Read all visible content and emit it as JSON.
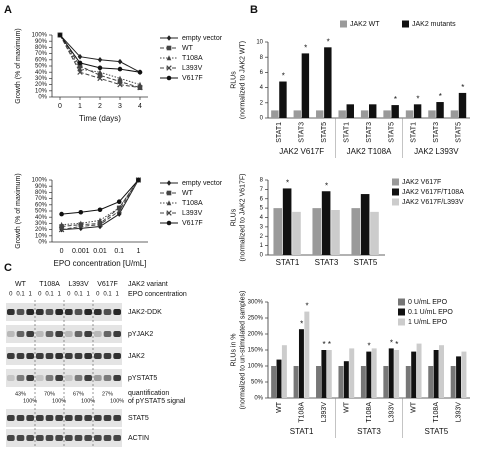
{
  "panels": [
    "A",
    "B",
    "C"
  ],
  "chart_data": [
    {
      "type": "line",
      "ylabel": [
        "Growth (% of maximum)"
      ],
      "xlabel": "Time (days)",
      "x": [
        0,
        1,
        2,
        3,
        4
      ],
      "xlim": [
        -0.4,
        4.4
      ],
      "xticks": [
        0,
        1,
        2,
        3,
        4
      ],
      "ylim": [
        0,
        100
      ],
      "yticks": [
        {
          "value": 0,
          "label": "0%"
        },
        {
          "value": 10,
          "label": "10%"
        },
        {
          "value": 20,
          "label": "20%"
        },
        {
          "value": 30,
          "label": "30%"
        },
        {
          "value": 40,
          "label": "40%"
        },
        {
          "value": 50,
          "label": "50%"
        },
        {
          "value": 60,
          "label": "60%"
        },
        {
          "value": 70,
          "label": "70%"
        },
        {
          "value": 80,
          "label": "80%"
        },
        {
          "value": 90,
          "label": "90%"
        },
        {
          "value": 100,
          "label": "100%"
        }
      ],
      "series": [
        {
          "name": "empty vector",
          "color": "#222222",
          "dash": "solid",
          "marker": "diamond",
          "values": [
            100,
            65,
            60,
            57,
            40
          ]
        },
        {
          "name": "WT",
          "color": "#444444",
          "dash": "dashed",
          "marker": "square",
          "values": [
            100,
            50,
            35,
            25,
            15
          ]
        },
        {
          "name": "T108A",
          "color": "#444444",
          "dash": "dotted",
          "marker": "triangle",
          "values": [
            100,
            45,
            40,
            30,
            20
          ]
        },
        {
          "name": "L393V",
          "color": "#444444",
          "dash": "dashed",
          "marker": "x",
          "values": [
            100,
            40,
            30,
            20,
            15
          ]
        },
        {
          "name": "V617F",
          "color": "#111111",
          "dash": "solid",
          "marker": "circle",
          "values": [
            100,
            55,
            47,
            45,
            40
          ]
        }
      ]
    },
    {
      "type": "line",
      "ylabel": [
        "Growth (% of maximum)"
      ],
      "xlabel": "EPO concentration [U/mL]",
      "categories": [
        "0",
        "0.001",
        "0.01",
        "0.1",
        "1"
      ],
      "ylim": [
        0,
        100
      ],
      "yticks": [
        {
          "value": 0,
          "label": "0%"
        },
        {
          "value": 10,
          "label": "10%"
        },
        {
          "value": 20,
          "label": "20%"
        },
        {
          "value": 30,
          "label": "30%"
        },
        {
          "value": 40,
          "label": "40%"
        },
        {
          "value": 50,
          "label": "50%"
        },
        {
          "value": 60,
          "label": "60%"
        },
        {
          "value": 70,
          "label": "70%"
        },
        {
          "value": 80,
          "label": "80%"
        },
        {
          "value": 90,
          "label": "90%"
        },
        {
          "value": 100,
          "label": "100%"
        }
      ],
      "series": [
        {
          "name": "empty vector",
          "color": "#222222",
          "dash": "solid",
          "marker": "diamond",
          "values": [
            20,
            22,
            25,
            45,
            100
          ]
        },
        {
          "name": "WT",
          "color": "#444444",
          "dash": "dashed",
          "marker": "square",
          "values": [
            25,
            28,
            30,
            55,
            100
          ]
        },
        {
          "name": "T108A",
          "color": "#444444",
          "dash": "dotted",
          "marker": "triangle",
          "values": [
            28,
            30,
            35,
            55,
            100
          ]
        },
        {
          "name": "L393V",
          "color": "#444444",
          "dash": "dashed",
          "marker": "x",
          "values": [
            20,
            25,
            28,
            50,
            100
          ]
        },
        {
          "name": "V617F",
          "color": "#111111",
          "dash": "solid",
          "marker": "circle",
          "values": [
            45,
            48,
            52,
            65,
            100
          ]
        }
      ]
    },
    {
      "type": "bar",
      "ylabel": [
        "RLUs",
        "(normalized to JAK2 WT)"
      ],
      "categories": [
        "STAT1",
        "STAT3",
        "STAT5",
        "STAT1",
        "STAT3",
        "STAT5",
        "STAT1",
        "STAT3",
        "STAT5"
      ],
      "groups": [
        "JAK2 V617F",
        "JAK2 T108A",
        "JAK2 L393V"
      ],
      "ylim": [
        0,
        10
      ],
      "yticks": [
        0,
        2,
        4,
        6,
        8,
        10
      ],
      "series": [
        {
          "name": "JAK2 WT",
          "color": "#9a9a9a",
          "values": [
            1,
            1,
            1,
            1,
            1,
            1,
            1,
            1,
            1
          ]
        },
        {
          "name": "JAK2 mutants",
          "color": "#111111",
          "values": [
            4.8,
            8.5,
            9.3,
            1.8,
            1.8,
            1.7,
            1.8,
            2.1,
            3.3
          ],
          "significance": [
            "*",
            "*",
            "*",
            null,
            null,
            "*",
            "*",
            "*",
            "*"
          ]
        }
      ]
    },
    {
      "type": "bar",
      "ylabel": [
        "RLUs",
        "(normalized to JAK2 V617F)"
      ],
      "categories": [
        "STAT1",
        "STAT3",
        "STAT5"
      ],
      "ylim": [
        0,
        8
      ],
      "yticks": [
        0,
        1,
        2,
        3,
        4,
        5,
        6,
        7,
        8
      ],
      "series": [
        {
          "name": "JAK2 V617F",
          "color": "#9a9a9a",
          "values": [
            5,
            5,
            5
          ]
        },
        {
          "name": "JAK2 V617F/T108A",
          "color": "#111111",
          "values": [
            7.1,
            6.8,
            6.5
          ],
          "significance": [
            "*",
            "*",
            null
          ]
        },
        {
          "name": "JAK2 V617F/L393V",
          "color": "#cccccc",
          "values": [
            4.6,
            4.8,
            4.6
          ]
        }
      ]
    },
    {
      "type": "bar",
      "ylabel": [
        "RLUs in %",
        "(normalized to un-stimulated samples)"
      ],
      "categories": [
        "WT",
        "T108A",
        "L393V",
        "WT",
        "T108A",
        "L393V",
        "WT",
        "T108A",
        "L393V"
      ],
      "groups": [
        "STAT1",
        "STAT3",
        "STAT5"
      ],
      "ylim": [
        0,
        300
      ],
      "yticks": [
        {
          "value": 0,
          "label": "0%"
        },
        {
          "value": 50,
          "label": "50%"
        },
        {
          "value": 100,
          "label": "100%"
        },
        {
          "value": 150,
          "label": "150%"
        },
        {
          "value": 200,
          "label": "200%"
        },
        {
          "value": 250,
          "label": "250%"
        },
        {
          "value": 300,
          "label": "300%"
        }
      ],
      "series": [
        {
          "name": "0 U/mL EPO",
          "color": "#777777",
          "values": [
            100,
            100,
            100,
            100,
            100,
            100,
            100,
            100,
            100
          ]
        },
        {
          "name": "0.1 U/mL EPO",
          "color": "#111111",
          "values": [
            120,
            215,
            150,
            115,
            145,
            155,
            145,
            150,
            130
          ],
          "significance": [
            null,
            "*",
            "*",
            null,
            "*",
            "*",
            null,
            null,
            null
          ]
        },
        {
          "name": "1 U/mL EPO",
          "color": "#cccccc",
          "values": [
            165,
            270,
            150,
            155,
            155,
            150,
            170,
            165,
            145
          ],
          "significance": [
            null,
            "*",
            "*",
            null,
            null,
            "*",
            null,
            null,
            null
          ]
        }
      ]
    }
  ],
  "blot": {
    "variants": [
      "WT",
      "T108A",
      "L393V",
      "V617F"
    ],
    "variant_label": "JAK2 variant",
    "epo_label": "EPO concentration",
    "doses": [
      "0",
      "0.1",
      "1"
    ],
    "rows": [
      "JAK2-DDK",
      "pYJAK2",
      "JAK2",
      "pYSTAT5",
      "STAT5",
      "ACTIN"
    ],
    "quantification_label": [
      "quantification",
      "of pYSTAT5 signal"
    ],
    "quantification": [
      [
        "43%",
        "100%"
      ],
      [
        "70%",
        "100%"
      ],
      [
        "67%",
        "100%"
      ],
      [
        "27%",
        "100%"
      ]
    ]
  }
}
